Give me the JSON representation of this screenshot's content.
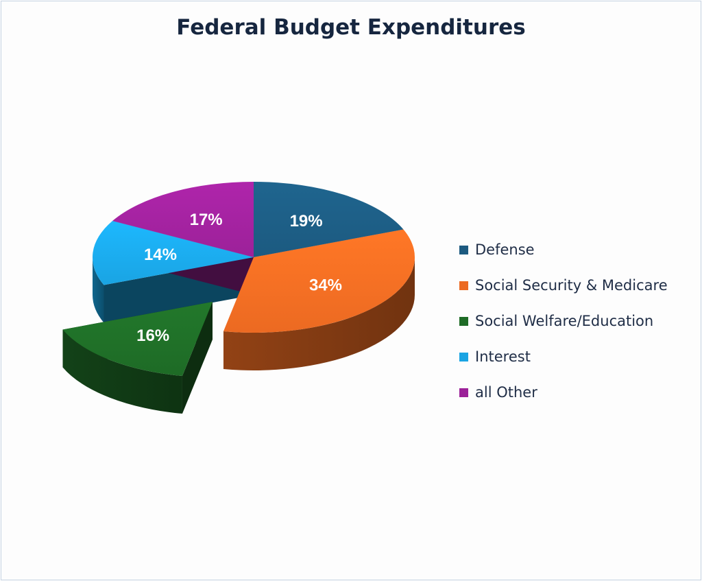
{
  "chart_data": {
    "type": "pie",
    "title": "Federal Budget Expenditures",
    "slices": [
      {
        "label": "Defense",
        "value": 19,
        "display": "19%",
        "color": "#1c5a80",
        "exploded": false
      },
      {
        "label": "Social Security & Medicare",
        "value": 34,
        "display": "34%",
        "color": "#ec6a22",
        "exploded": false
      },
      {
        "label": "Social Welfare/Education",
        "value": 16,
        "display": "16%",
        "color": "#1e6b26",
        "exploded": true
      },
      {
        "label": "Interest",
        "value": 14,
        "display": "14%",
        "color": "#1aa4e3",
        "exploded": false
      },
      {
        "label": "all Other",
        "value": 17,
        "display": "17%",
        "color": "#9c2199",
        "exploded": false
      }
    ],
    "legend_position": "right",
    "style": "3d-exploded-pie"
  }
}
